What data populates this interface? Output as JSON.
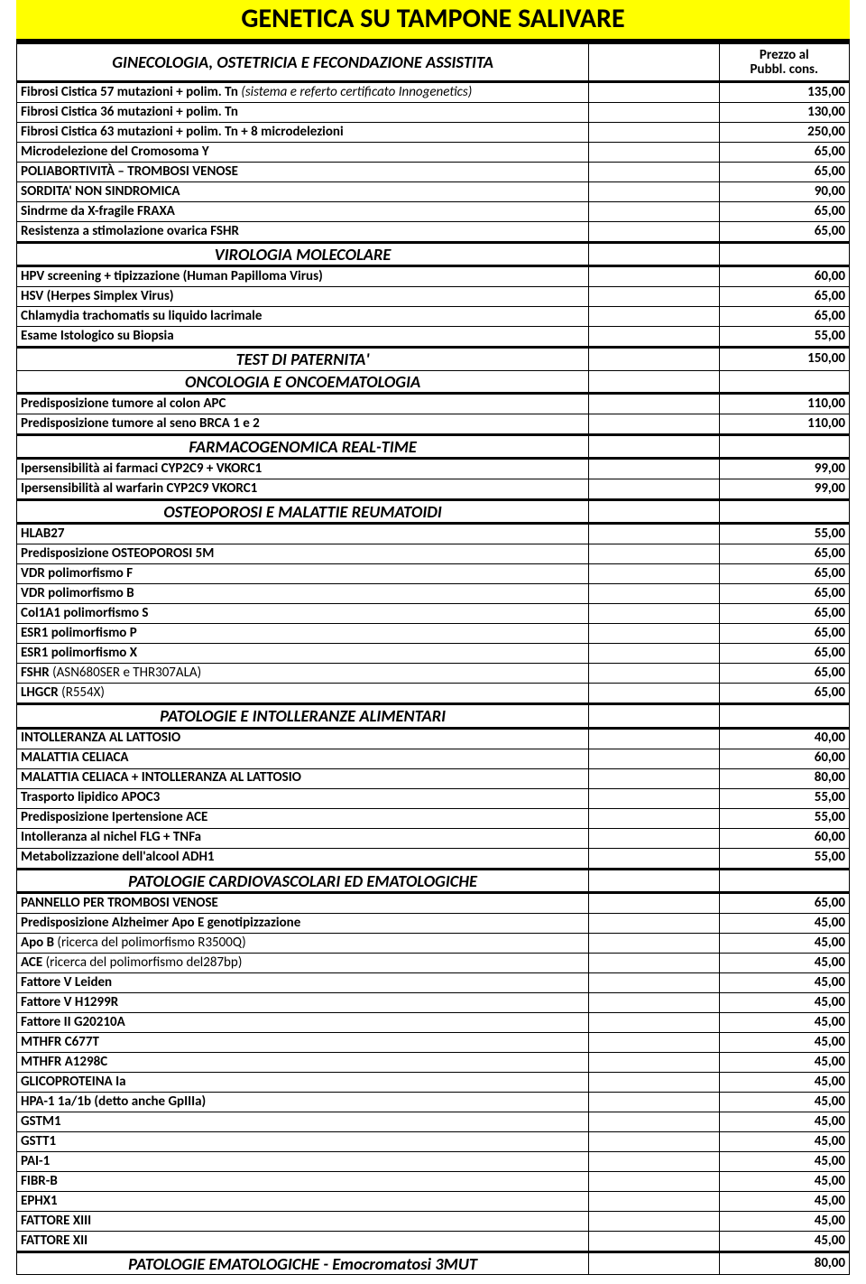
{
  "title": "GENETICA SU TAMPONE SALIVARE",
  "price_header_line1": "Prezzo al",
  "price_header_line2": "Pubbl. cons.",
  "sections": {
    "s1": {
      "heading": "GINECOLOGIA, OSTETRICIA E FECONDAZIONE ASSISTITA",
      "rows": [
        {
          "label_bold": "Fibrosi Cistica 57 mutazioni + polim. Tn ",
          "label_ital": "(sistema e referto certificato Innogenetics)",
          "price": "135,00"
        },
        {
          "label": "Fibrosi Cistica 36 mutazioni + polim. Tn",
          "price": "130,00"
        },
        {
          "label": "Fibrosi Cistica 63 mutazioni + polim. Tn + 8 microdelezioni",
          "price": "250,00"
        },
        {
          "label": "Microdelezione del Cromosoma Y",
          "price": "65,00"
        },
        {
          "label": "POLIABORTIVITÀ – TROMBOSI VENOSE",
          "price": "65,00"
        },
        {
          "label": "SORDITA' NON SINDROMICA",
          "price": "90,00"
        },
        {
          "label": "Sindrme da X-fragile FRAXA",
          "price": "65,00"
        },
        {
          "label": "Resistenza a stimolazione ovarica FSHR",
          "price": "65,00"
        }
      ]
    },
    "s2": {
      "heading": "VIROLOGIA MOLECOLARE",
      "rows": [
        {
          "label": "HPV screening + tipizzazione (Human Papilloma Virus)",
          "price": "60,00"
        },
        {
          "label": "HSV (Herpes Simplex Virus)",
          "price": "65,00"
        },
        {
          "label": "Chlamydia trachomatis su liquido lacrimale",
          "price": "65,00"
        },
        {
          "label": "Esame Istologico su Biopsia",
          "price": "55,00"
        }
      ]
    },
    "s3": {
      "heading": "TEST DI PATERNITA'",
      "price": "150,00"
    },
    "s4": {
      "heading": "ONCOLOGIA E ONCOEMATOLOGIA",
      "rows": [
        {
          "label": "Predisposizione tumore al colon APC",
          "price": "110,00"
        },
        {
          "label": "Predisposizione tumore al seno BRCA 1 e 2",
          "price": "110,00"
        }
      ]
    },
    "s5": {
      "heading": "FARMACOGENOMICA REAL-TIME",
      "rows": [
        {
          "label": "Ipersensibilità ai farmaci CYP2C9 + VKORC1",
          "price": "99,00"
        },
        {
          "label": "Ipersensibilità al warfarin CYP2C9 VKORC1",
          "price": "99,00"
        }
      ]
    },
    "s6": {
      "heading": "OSTEOPOROSI E MALATTIE REUMATOIDI",
      "rows": [
        {
          "label": "HLAB27",
          "price": "55,00"
        },
        {
          "label": "Predisposizione OSTEOPOROSI 5M",
          "price": "65,00"
        },
        {
          "label": "VDR polimorfismo F",
          "price": "65,00"
        },
        {
          "label": "VDR polimorfismo B",
          "price": "65,00"
        },
        {
          "label": "Col1A1 polimorfismo S",
          "price": "65,00"
        },
        {
          "label": "ESR1 polimorfismo P",
          "price": "65,00"
        },
        {
          "label": "ESR1 polimorfismo X",
          "price": "65,00"
        },
        {
          "label_bold": "FSHR ",
          "label_norm": "(ASN680SER e THR307ALA)",
          "price": "65,00"
        },
        {
          "label_bold": "LHGCR ",
          "label_norm": "(R554X)",
          "price": "65,00"
        }
      ]
    },
    "s7": {
      "heading": "PATOLOGIE E INTOLLERANZE ALIMENTARI",
      "rows": [
        {
          "label": "INTOLLERANZA AL LATTOSIO",
          "price": "40,00"
        },
        {
          "label": "MALATTIA CELIACA",
          "price": "60,00"
        },
        {
          "label": "MALATTIA CELIACA + INTOLLERANZA AL LATTOSIO",
          "price": "80,00"
        },
        {
          "label": "Trasporto lipidico APOC3",
          "price": "55,00"
        },
        {
          "label": "Predisposizione Ipertensione ACE",
          "price": "55,00"
        },
        {
          "label": "Intolleranza al nichel FLG + TNFa",
          "price": "60,00"
        },
        {
          "label": "Metabolizzazione dell'alcool ADH1",
          "price": "55,00"
        }
      ]
    },
    "s8": {
      "heading": "PATOLOGIE CARDIOVASCOLARI ED EMATOLOGICHE",
      "rows": [
        {
          "label": "PANNELLO PER TROMBOSI VENOSE",
          "price": "65,00"
        },
        {
          "label": "Predisposizione Alzheimer Apo E genotipizzazione",
          "price": "45,00"
        },
        {
          "label_bold": "Apo B ",
          "label_norm": "(ricerca del polimorfismo R3500Q)",
          "price": "45,00"
        },
        {
          "label_bold": "ACE ",
          "label_norm": "(ricerca del polimorfismo del287bp)",
          "price": "45,00"
        },
        {
          "label": "Fattore V Leiden",
          "price": "45,00"
        },
        {
          "label": "Fattore V H1299R",
          "price": "45,00"
        },
        {
          "label": "Fattore II G20210A",
          "price": "45,00"
        },
        {
          "label": "MTHFR C677T",
          "price": "45,00"
        },
        {
          "label": "MTHFR A1298C",
          "price": "45,00"
        },
        {
          "label": "GLICOPROTEINA Ia",
          "price": "45,00"
        },
        {
          "label": "HPA-1 1a/1b (detto anche GpIIIa)",
          "price": "45,00"
        },
        {
          "label": "GSTM1",
          "price": "45,00"
        },
        {
          "label": "GSTT1",
          "price": "45,00"
        },
        {
          "label": "PAI-1",
          "price": "45,00"
        },
        {
          "label": "FIBR-B",
          "price": "45,00"
        },
        {
          "label": "EPHX1",
          "price": "45,00"
        },
        {
          "label": "FATTORE XIII",
          "price": "45,00"
        },
        {
          "label": "FATTORE XII",
          "price": "45,00"
        }
      ]
    },
    "s9": {
      "heading": "PATOLOGIE EMATOLOGICHE - Emocromatosi 3MUT",
      "price": "80,00"
    }
  }
}
